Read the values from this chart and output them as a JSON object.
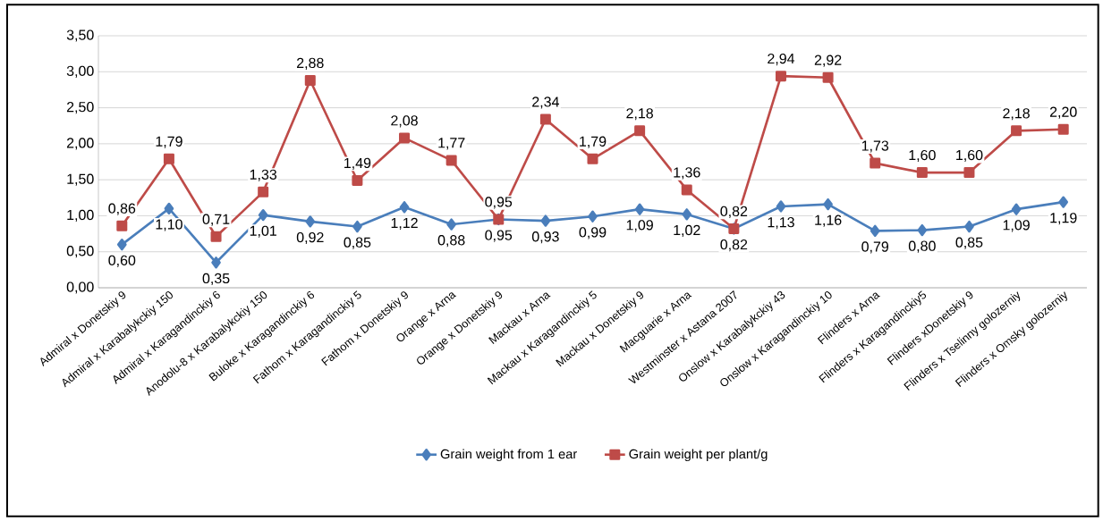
{
  "chart_data": {
    "type": "line",
    "categories": [
      "Admiral x Donetskiy 9",
      "Admiral x Karabalykckiy 150",
      "Admiral x Karagandinckiy 6",
      "Anodolu-8 x Karabalykckiy 150",
      "Buloke x Karagandinckiy 6",
      "Fathom x Karagandinckiy 5",
      "Fathom x Donetskiy 9",
      "Orange x Arna",
      "Orange x Donetskiy 9",
      "Mackau x Arna",
      "Mackau x Karagandinckiy 5",
      "Mackau x Donetskiy 9",
      "Macguarie x Arna",
      "Westminster x Astana 2007",
      "Onslow x Karabalykckiy 43",
      "Onslow x Karagandinckiy 10",
      "Flinders x Arna",
      "Flinders x Karagandinckiy5",
      "Flinders xDonetskiy 9",
      "Flinders x Tselinny golozerniy",
      "Flinders x Omsky golozerniy"
    ],
    "series": [
      {
        "name": "Grain weight from 1 ear",
        "color": "#4a7ebb",
        "marker": "diamond",
        "values": [
          0.6,
          1.1,
          0.35,
          1.01,
          0.92,
          0.85,
          1.12,
          0.88,
          0.95,
          0.93,
          0.99,
          1.09,
          1.02,
          0.82,
          1.13,
          1.16,
          0.79,
          0.8,
          0.85,
          1.09,
          1.19
        ],
        "value_labels": [
          "0,60",
          "1,10",
          "0,35",
          "1,01",
          "0,92",
          "0,85",
          "1,12",
          "0,88",
          "0,95",
          "0,93",
          "0,99",
          "1,09",
          "1,02",
          "0,82",
          "1,13",
          "1,16",
          "0,79",
          "0,80",
          "0,85",
          "1,09",
          "1,19"
        ]
      },
      {
        "name": "Grain weight per plant/g",
        "color": "#be4b48",
        "marker": "square",
        "values": [
          0.86,
          1.79,
          0.71,
          1.33,
          2.88,
          1.49,
          2.08,
          1.77,
          0.95,
          2.34,
          1.79,
          2.18,
          1.36,
          0.82,
          2.94,
          2.92,
          1.73,
          1.6,
          1.6,
          2.18,
          2.2
        ],
        "value_labels": [
          "0,86",
          "1,79",
          "0,71",
          "1,33",
          "2,88",
          "1,49",
          "2,08",
          "1,77",
          "0,95",
          "2,34",
          "1,79",
          "2,18",
          "1,36",
          "0,82",
          "2,94",
          "2,92",
          "1,73",
          "1,60",
          "1,60",
          "2,18",
          "2,20"
        ]
      }
    ],
    "ylim": [
      0,
      3.5
    ],
    "yticks": [
      {
        "value": 0,
        "label": "0,00"
      },
      {
        "value": 0.5,
        "label": "0,50"
      },
      {
        "value": 1,
        "label": "1,00"
      },
      {
        "value": 1.5,
        "label": "1,50"
      },
      {
        "value": 2,
        "label": "2,00"
      },
      {
        "value": 2.5,
        "label": "2,50"
      },
      {
        "value": 3,
        "label": "3,00"
      },
      {
        "value": 3.5,
        "label": "3,50"
      }
    ],
    "grid": "y",
    "legend": "bottom",
    "line_style": "solid"
  }
}
